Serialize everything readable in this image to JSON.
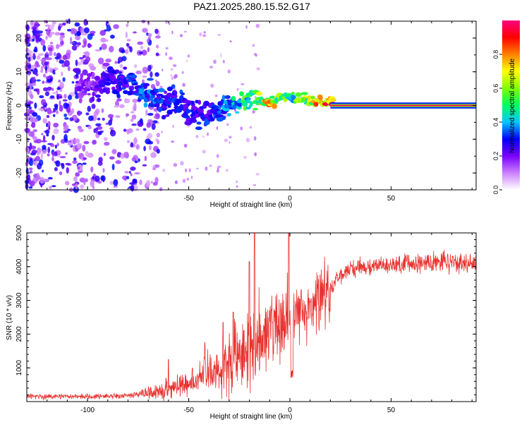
{
  "title": "PAZ1.2025.280.15.52.G17",
  "colors": {
    "line": "#e8322f",
    "frame": "#000000",
    "cmap": [
      "#ffffff",
      "#cc80ff",
      "#7a00ff",
      "#0000ff",
      "#00c8ff",
      "#00ff60",
      "#80ff00",
      "#ffff00",
      "#ff8000",
      "#ff0000",
      "#ff0080"
    ]
  },
  "chart_data": [
    {
      "type": "heatmap",
      "name": "spectrogram",
      "xlabel": "Height of straight line (km)",
      "ylabel": "Frequency (Hz)",
      "xlim": [
        -130,
        92
      ],
      "ylim": [
        -25,
        25
      ],
      "xticks": [
        -100,
        -50,
        0,
        50
      ],
      "yticks": [
        -20,
        -10,
        0,
        10,
        20
      ],
      "xtick_labels": [
        "-100",
        "-50",
        "0",
        "50"
      ],
      "ytick_labels": [
        "-20",
        "-10",
        "0",
        "10",
        "20"
      ],
      "ridge": {
        "x": [
          -130,
          -100,
          -90,
          -80,
          -70,
          -60,
          -50,
          -45,
          -40,
          -35,
          -30,
          -20,
          -10,
          0,
          10,
          20,
          30,
          50,
          92
        ],
        "y": [
          8,
          6,
          8,
          6,
          3,
          1,
          -1,
          -2,
          -3,
          -1,
          0,
          1,
          1,
          3,
          1,
          0.5,
          0,
          0,
          0
        ],
        "amplitude": [
          0.15,
          0.2,
          0.25,
          0.3,
          0.35,
          0.3,
          0.3,
          0.3,
          0.3,
          0.3,
          0.4,
          0.55,
          0.75,
          0.5,
          0.7,
          0.9,
          0.95,
          1.0,
          1.0
        ]
      },
      "colorbar": {
        "label": "Normalized spectral amplitude",
        "range": [
          0,
          1
        ],
        "ticks": [
          0.0,
          0.2,
          0.4,
          0.6,
          0.8
        ],
        "tick_labels": [
          "0.0",
          "0.2",
          "0.4",
          "0.6",
          "0.8"
        ]
      }
    },
    {
      "type": "line",
      "name": "snr",
      "xlabel": "Height of straight line (km)",
      "ylabel": "SNR (10 * v/v)",
      "xlim": [
        -130,
        92
      ],
      "ylim": [
        0,
        5000
      ],
      "xticks": [
        -100,
        -50,
        0,
        50
      ],
      "yticks": [
        1000,
        2000,
        3000,
        4000,
        5000
      ],
      "xtick_labels": [
        "-100",
        "-50",
        "0",
        "50"
      ],
      "ytick_labels": [
        "1000",
        "2000",
        "3000",
        "4000",
        "5000"
      ],
      "envelope": {
        "x": [
          -130,
          -100,
          -80,
          -70,
          -60,
          -50,
          -40,
          -30,
          -20,
          -15,
          -10,
          -5,
          0,
          5,
          10,
          15,
          20,
          25,
          30,
          40,
          50,
          60,
          70,
          80,
          92
        ],
        "y": [
          150,
          150,
          180,
          250,
          380,
          520,
          800,
          1200,
          1600,
          1850,
          2100,
          2350,
          2500,
          2700,
          2900,
          3100,
          3400,
          3700,
          3900,
          4000,
          4050,
          4100,
          4150,
          4150,
          4100
        ]
      },
      "spikes": [
        {
          "x": -60,
          "y": 1250
        },
        {
          "x": -42,
          "y": 1750
        },
        {
          "x": -33,
          "y": 2350
        },
        {
          "x": -28,
          "y": 2650
        },
        {
          "x": -20,
          "y": 4150
        },
        {
          "x": -17.5,
          "y": 5000
        },
        {
          "x": -0.5,
          "y": 5000
        },
        {
          "x": 1,
          "y": 3200
        }
      ]
    }
  ]
}
